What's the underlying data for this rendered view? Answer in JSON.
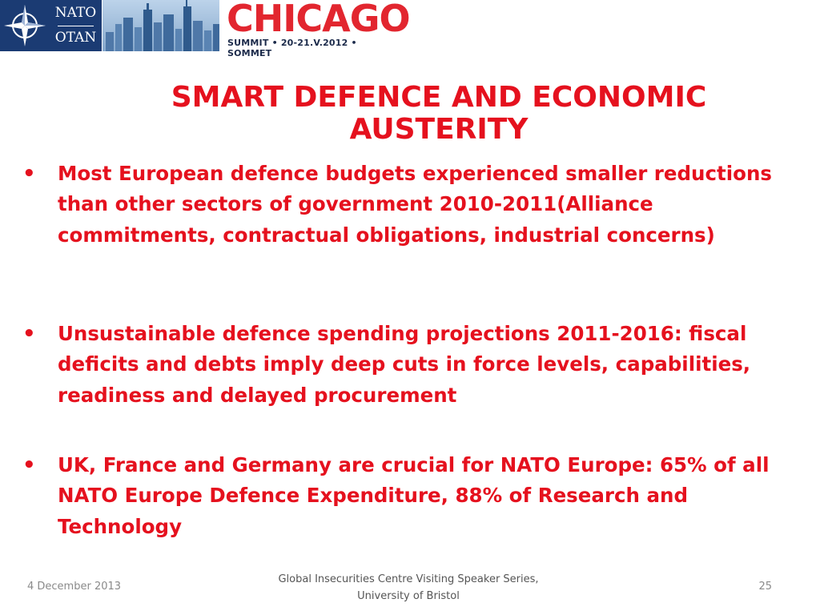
{
  "header": {
    "nato_line1": "NATO",
    "nato_line2": "OTAN",
    "summit_word": "CHICAGO",
    "summit_subline": "SUMMIT • 20-21.V.2012 • SOMMET"
  },
  "slide": {
    "title": "SMART DEFENCE AND ECONOMIC AUSTERITY",
    "bullets": [
      "Most European defence budgets experienced smaller reductions than other sectors of government 2010-2011(Alliance commitments, contractual obligations, industrial concerns)",
      "Unsustainable defence spending projections 2011-2016: fiscal deficits and debts imply deep cuts in force levels, capabilities, readiness and delayed procurement",
      "UK, France and Germany are crucial for NATO Europe: 65% of all NATO Europe Defence Expenditure, 88% of Research and Technology"
    ],
    "bullet_symbol": "•"
  },
  "footer": {
    "date": "4 December 2013",
    "center": "Global Insecurities Centre Visiting Speaker Series, University of Bristol",
    "page": "25"
  },
  "colors": {
    "accent_red": "#e5111e",
    "nato_blue": "#1b3b73",
    "chicago_red": "#e2262f"
  },
  "icons": [
    "nato-compass-star-icon",
    "city-skyline-image"
  ]
}
